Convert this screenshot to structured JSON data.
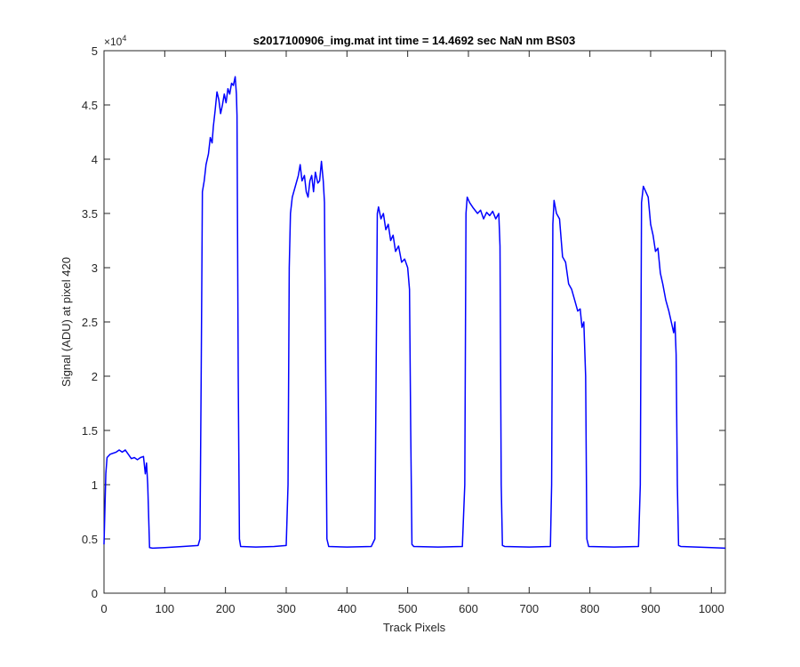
{
  "chart_data": {
    "type": "line",
    "title": "s2017100906_img.mat int time = 14.4692 sec  NaN nm BS03",
    "x_label": "Track Pixels",
    "y_label": "Signal (ADU) at pixel 420",
    "y_multiplier": {
      "base": "×10",
      "exponent": "4"
    },
    "xlim": [
      0,
      1023
    ],
    "ylim": [
      0,
      50000
    ],
    "xticks": [
      0,
      100,
      200,
      300,
      400,
      500,
      600,
      700,
      800,
      900,
      1000
    ],
    "yticks": [
      {
        "value": 0,
        "label": "0"
      },
      {
        "value": 5000,
        "label": "0.5"
      },
      {
        "value": 10000,
        "label": "1"
      },
      {
        "value": 15000,
        "label": "1.5"
      },
      {
        "value": 20000,
        "label": "2"
      },
      {
        "value": 25000,
        "label": "2.5"
      },
      {
        "value": 30000,
        "label": "3"
      },
      {
        "value": 35000,
        "label": "3.5"
      },
      {
        "value": 40000,
        "label": "4"
      },
      {
        "value": 45000,
        "label": "4.5"
      },
      {
        "value": 50000,
        "label": "5"
      }
    ],
    "x": [
      0,
      3,
      5,
      10,
      20,
      25,
      30,
      35,
      40,
      45,
      50,
      55,
      60,
      65,
      68,
      70,
      72,
      75,
      80,
      100,
      130,
      155,
      158,
      160,
      162,
      165,
      168,
      172,
      175,
      178,
      180,
      183,
      186,
      189,
      192,
      195,
      198,
      201,
      204,
      207,
      210,
      213,
      216,
      218,
      219,
      221,
      223,
      225,
      250,
      280,
      300,
      303,
      305,
      307,
      310,
      315,
      320,
      323,
      326,
      330,
      333,
      336,
      339,
      342,
      345,
      348,
      352,
      355,
      358,
      361,
      363,
      365,
      367,
      370,
      400,
      440,
      446,
      448,
      450,
      452,
      456,
      460,
      464,
      468,
      472,
      476,
      480,
      485,
      490,
      495,
      500,
      503,
      505,
      507,
      510,
      550,
      590,
      594,
      596,
      598,
      602,
      608,
      615,
      620,
      625,
      630,
      635,
      640,
      645,
      650,
      652,
      654,
      656,
      660,
      700,
      735,
      737,
      739,
      741,
      745,
      750,
      755,
      760,
      765,
      770,
      775,
      780,
      784,
      787,
      790,
      793,
      795,
      798,
      840,
      880,
      883,
      885,
      888,
      892,
      896,
      900,
      904,
      908,
      912,
      916,
      920,
      925,
      930,
      934,
      938,
      940,
      942,
      944,
      946,
      950,
      1000,
      1023
    ],
    "series": [
      {
        "color": "#0000ff",
        "values": [
          4500,
          11000,
          12500,
          12800,
          13000,
          13200,
          13000,
          13200,
          12800,
          12400,
          12500,
          12300,
          12500,
          12600,
          11000,
          12000,
          10000,
          4200,
          4150,
          4200,
          4300,
          4400,
          5000,
          20000,
          37000,
          38000,
          39500,
          40500,
          42000,
          41500,
          43000,
          44500,
          46200,
          45500,
          44200,
          45000,
          46000,
          45200,
          46500,
          46000,
          47000,
          46800,
          47600,
          46000,
          44000,
          20000,
          5000,
          4300,
          4250,
          4300,
          4400,
          10000,
          30000,
          35000,
          36500,
          37500,
          38500,
          39500,
          38000,
          38500,
          37000,
          36500,
          38000,
          38500,
          37000,
          38800,
          37800,
          38000,
          39800,
          38000,
          36000,
          20000,
          5000,
          4300,
          4250,
          4300,
          5000,
          20000,
          35000,
          35600,
          34500,
          35000,
          33500,
          34000,
          32500,
          33000,
          31500,
          32000,
          30500,
          30800,
          30000,
          28000,
          15000,
          4500,
          4300,
          4250,
          4300,
          10000,
          35000,
          36500,
          36000,
          35500,
          35000,
          35300,
          34500,
          35100,
          34800,
          35200,
          34500,
          35000,
          32000,
          10000,
          4400,
          4300,
          4250,
          4300,
          10000,
          34000,
          36200,
          35000,
          34500,
          31000,
          30500,
          28500,
          28000,
          27000,
          26000,
          26200,
          24500,
          25000,
          20000,
          5000,
          4300,
          4250,
          4300,
          10000,
          36000,
          37500,
          37000,
          36500,
          34000,
          33000,
          31500,
          31800,
          29500,
          28500,
          27000,
          26000,
          25000,
          24000,
          25000,
          22000,
          10000,
          4400,
          4300,
          4200,
          4150
        ]
      }
    ]
  }
}
